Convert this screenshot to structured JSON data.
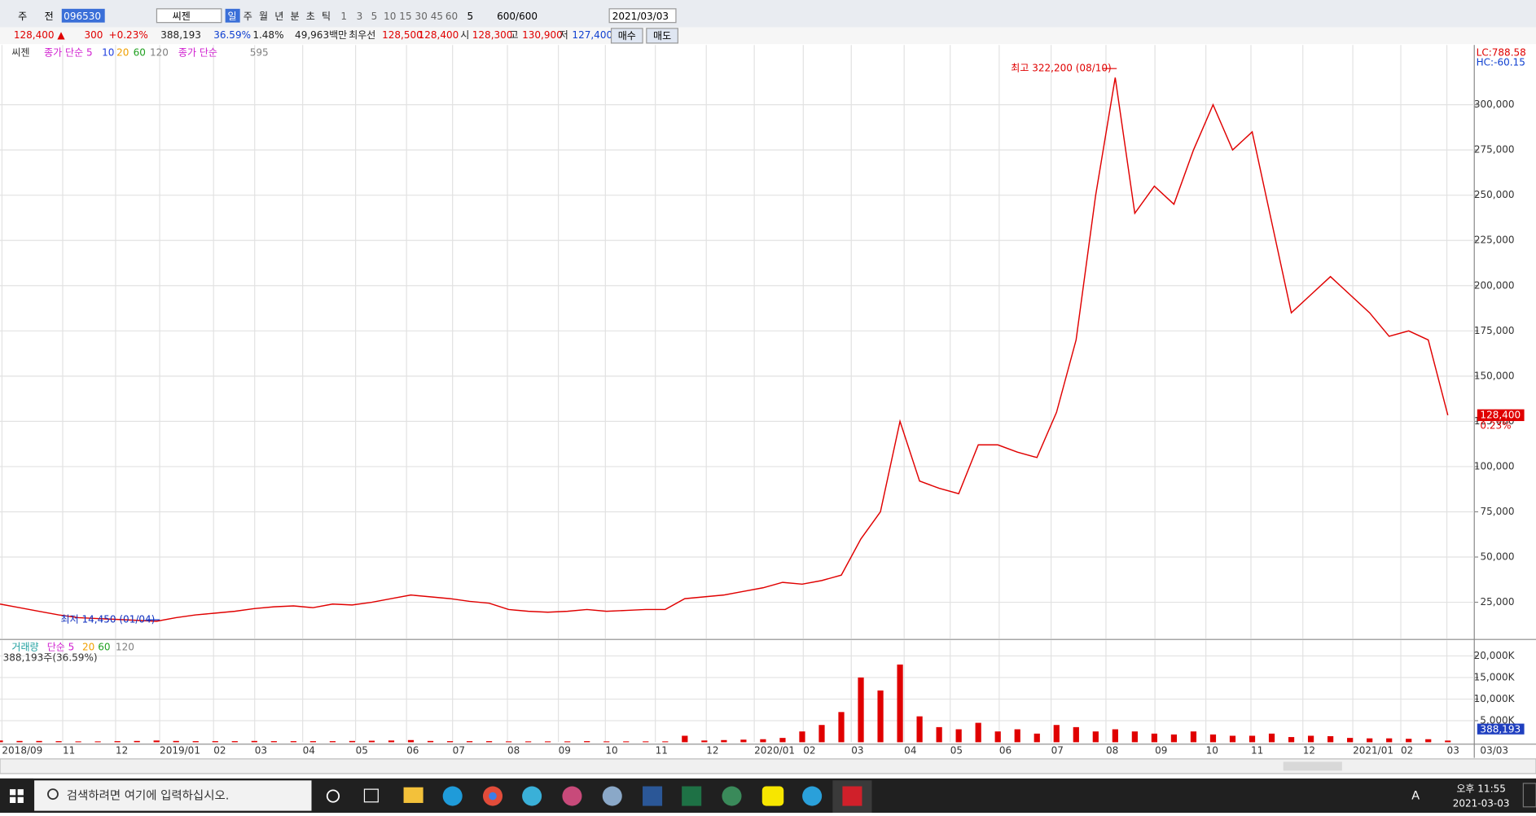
{
  "toolbar": {
    "market": "주",
    "scope": "전",
    "code": "096530",
    "name": "씨젠",
    "periods": [
      "일",
      "주",
      "월",
      "년",
      "분",
      "초",
      "틱"
    ],
    "intervals": [
      "1",
      "3",
      "5",
      "10",
      "15",
      "30",
      "45",
      "60"
    ],
    "count": "5",
    "range": "600/600",
    "date": "2021/03/03"
  },
  "info_bar": {
    "items": [
      {
        "text": "128,400 ▲",
        "color": "#e00000"
      },
      {
        "text": "300",
        "color": "#e00000"
      },
      {
        "text": "+0.23%",
        "color": "#e00000"
      },
      {
        "text": "388,193",
        "color": "#222222"
      },
      {
        "text": "36.59%",
        "color": "#1040d0"
      },
      {
        "text": "1.48%",
        "color": "#222222"
      },
      {
        "text": "49,963백만",
        "color": "#222222"
      },
      {
        "text": "최우선",
        "color": "#222222"
      },
      {
        "text": "128,500",
        "color": "#e00000"
      },
      {
        "text": "128,400",
        "color": "#e00000"
      },
      {
        "text": "시",
        "color": "#222222"
      },
      {
        "text": "128,300",
        "color": "#e00000"
      },
      {
        "text": "고",
        "color": "#222222"
      },
      {
        "text": "130,900",
        "color": "#e00000"
      },
      {
        "text": "저",
        "color": "#222222"
      },
      {
        "text": "127,400",
        "color": "#1040d0"
      }
    ],
    "buttons": [
      "매수",
      "매도"
    ]
  },
  "chart_data": [
    {
      "type": "line",
      "legend": [
        {
          "text": "씨젠",
          "color": "#333333"
        },
        {
          "text": "종가 단순 5",
          "color": "#d020d0"
        },
        {
          "text": "10",
          "color": "#2040e0"
        },
        {
          "text": "20",
          "color": "#f0a000"
        },
        {
          "text": "60",
          "color": "#20a020"
        },
        {
          "text": "120",
          "color": "#808080"
        },
        {
          "text": "종가 단순",
          "color": "#d020d0"
        },
        {
          "text": "595",
          "color": "#808080"
        }
      ],
      "xticks": [
        "2018/09",
        "11",
        "12",
        "2019/01",
        "02",
        "03",
        "04",
        "05",
        "06",
        "07",
        "08",
        "09",
        "10",
        "11",
        "12",
        "2020/01",
        "02",
        "03",
        "04",
        "05",
        "06",
        "07",
        "08",
        "09",
        "10",
        "11",
        "12",
        "2021/01",
        "02",
        "03"
      ],
      "x_end_label": "03/03",
      "ylim": [
        5000,
        333000
      ],
      "yticks": [
        {
          "value": 25000,
          "label": "25,000"
        },
        {
          "value": 50000,
          "label": "50,000"
        },
        {
          "value": 75000,
          "label": "75,000"
        },
        {
          "value": 100000,
          "label": "100,000"
        },
        {
          "value": 125000,
          "label": "125,000"
        },
        {
          "value": 150000,
          "label": "150,000"
        },
        {
          "value": 175000,
          "label": "175,000"
        },
        {
          "value": 200000,
          "label": "200,000"
        },
        {
          "value": 225000,
          "label": "225,000"
        },
        {
          "value": 250000,
          "label": "250,000"
        },
        {
          "value": 275000,
          "label": "275,000"
        },
        {
          "value": 300000,
          "label": "300,000"
        }
      ],
      "grid": true,
      "color": "#e00000",
      "values": [
        24000,
        22000,
        20000,
        18000,
        16500,
        16000,
        15500,
        15000,
        14500,
        16500,
        18000,
        19000,
        20000,
        21500,
        22500,
        23000,
        22000,
        24000,
        23500,
        25000,
        27000,
        29000,
        28000,
        27000,
        25500,
        24500,
        21000,
        20000,
        19500,
        20000,
        21000,
        20000,
        20500,
        21000,
        21000,
        27000,
        28000,
        29000,
        31000,
        33000,
        36000,
        35000,
        37000,
        40000,
        60000,
        75000,
        125000,
        92000,
        88000,
        85000,
        112000,
        112000,
        108000,
        105000,
        130000,
        170000,
        250000,
        315000,
        240000,
        255000,
        245000,
        275000,
        300000,
        275000,
        285000,
        235000,
        185000,
        195000,
        205000,
        195000,
        185000,
        172000,
        175000,
        170000,
        128400
      ],
      "annotations": {
        "high": "최고 322,200 (08/10)",
        "low": "최저 14,450 (01/04)",
        "lc": "LC:788.58",
        "hc": "HC:-60.15",
        "price_tag": "128,400",
        "change_tag": "0.23%"
      }
    },
    {
      "type": "bar",
      "legend": [
        {
          "text": "거래량",
          "color": "#20a0a0"
        },
        {
          "text": "단순 5",
          "color": "#d020d0"
        },
        {
          "text": "20",
          "color": "#f0a000"
        },
        {
          "text": "60",
          "color": "#20a020"
        },
        {
          "text": "120",
          "color": "#808080"
        }
      ],
      "summary": "388,193주(36.59%)",
      "ylim": [
        0,
        23600
      ],
      "yticks": [
        {
          "value": 5000,
          "label": "5,000K"
        },
        {
          "value": 10000,
          "label": "10,000K"
        },
        {
          "value": 15000,
          "label": "15,000K"
        },
        {
          "value": 20000,
          "label": "20,000K"
        }
      ],
      "color": "#e00000",
      "values": [
        400,
        300,
        300,
        250,
        200,
        200,
        250,
        300,
        400,
        300,
        250,
        250,
        250,
        300,
        250,
        250,
        250,
        250,
        300,
        350,
        400,
        500,
        300,
        250,
        250,
        250,
        200,
        200,
        200,
        200,
        250,
        200,
        200,
        200,
        200,
        1500,
        400,
        500,
        600,
        700,
        1000,
        2500,
        4000,
        7000,
        15000,
        12000,
        18000,
        6000,
        3500,
        3000,
        4500,
        2500,
        3000,
        2000,
        4000,
        3500,
        2500,
        3000,
        2500,
        2000,
        1800,
        2500,
        1800,
        1500,
        1500,
        2000,
        1200,
        1500,
        1400,
        1000,
        900,
        900,
        800,
        700,
        388.193
      ],
      "value_tag": "388,193"
    }
  ],
  "taskbar": {
    "search": "검색하려면 여기에 입력하십시오.",
    "ime": "A",
    "time": "오후 11:55",
    "date": "2021-03-03"
  }
}
